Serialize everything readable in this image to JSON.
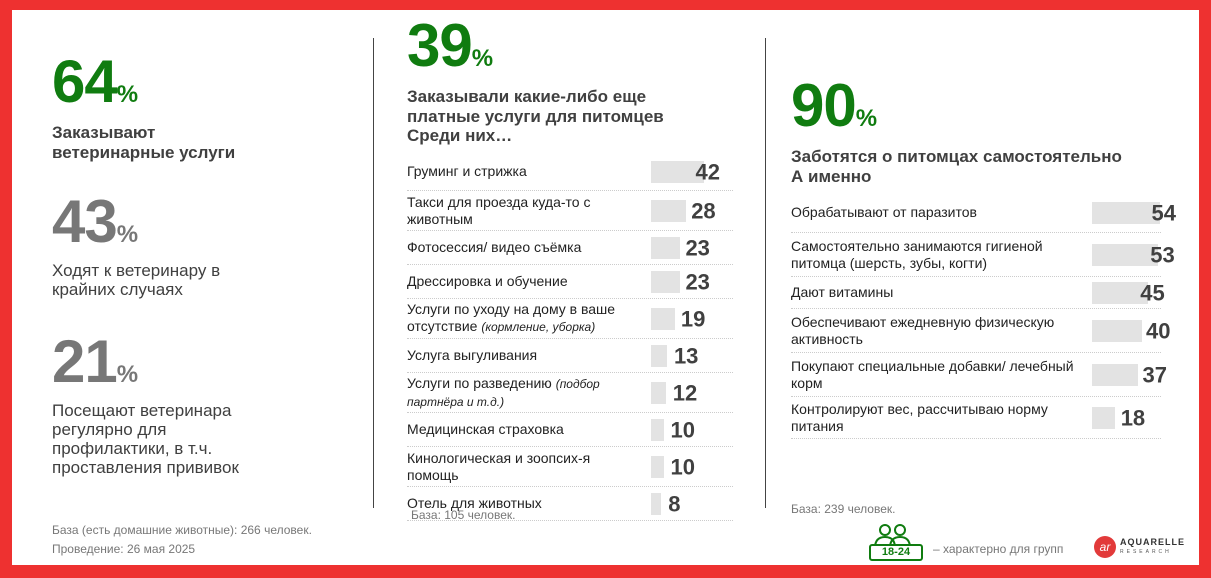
{
  "left": {
    "stats": [
      {
        "value": "64",
        "pct": "%",
        "text": "Заказывают ветеринарные услуги",
        "color": "#107c10"
      },
      {
        "value": "43",
        "pct": "%",
        "text": "Ходят к ветеринару в крайних случаях",
        "color": "#777777"
      },
      {
        "value": "21",
        "pct": "%",
        "text": "Посещают ветеринара регулярно для профилактики, в т.ч. проставления прививок",
        "color": "#777777"
      }
    ],
    "base": "База (есть домашние животные): 266 человек.",
    "date": "Проведение: 26 мая 2025"
  },
  "middle": {
    "value": "39",
    "pct": "%",
    "headline": "Заказывали какие-либо еще платные услуги для питомцев",
    "subhead": "Среди них…",
    "items": [
      {
        "label": "Груминг и стрижка",
        "note": "",
        "value": 42
      },
      {
        "label": "Такси для проезда куда-то с животным",
        "note": "",
        "value": 28
      },
      {
        "label": "Фотосессия/ видео съёмка",
        "note": "",
        "value": 23
      },
      {
        "label": "Дрессировка и обучение",
        "note": "",
        "value": 23
      },
      {
        "label": "Услуги по уходу на дому в ваше отсутствие",
        "note": "(кормление, уборка)",
        "value": 19
      },
      {
        "label": "Услуга выгуливания",
        "note": "",
        "value": 13
      },
      {
        "label": "Услуги по разведению",
        "note": "(подбор партнёра и т.д.)",
        "value": 12
      },
      {
        "label": "Медицинская страховка",
        "note": "",
        "value": 10
      },
      {
        "label": "Кинологическая и зоопсих-я помощь",
        "note": "",
        "value": 10
      },
      {
        "label": "Отель для животных",
        "note": "",
        "value": 8
      }
    ],
    "base": "База: 105 человек."
  },
  "right": {
    "value": "90",
    "pct": "%",
    "headline": "Заботятся о питомцах самостоятельно",
    "subhead": "А именно",
    "items": [
      {
        "label": "Обрабатывают от паразитов",
        "value": 54
      },
      {
        "label": "Самостоятельно занимаются гигиеной питомца (шерсть, зубы, когти)",
        "value": 53
      },
      {
        "label": "Дают витамины",
        "value": 45
      },
      {
        "label": "Обеспечивают ежедневную физическую активность",
        "value": 40
      },
      {
        "label": "Покупают специальные добавки/ лечебный корм",
        "value": 37
      },
      {
        "label": "Контролируют вес, рассчитываю норму питания",
        "value": 18
      }
    ],
    "base": "База: 239 человек."
  },
  "legend": {
    "badge": "18-24",
    "text": "– характерно для групп"
  },
  "logo": {
    "mark": "ar",
    "name": "AQUARELLE",
    "sub": "RESEARCH"
  },
  "colors": {
    "frame": "#ee3130",
    "accent": "#107c10",
    "bar": "#e3e3e3"
  }
}
